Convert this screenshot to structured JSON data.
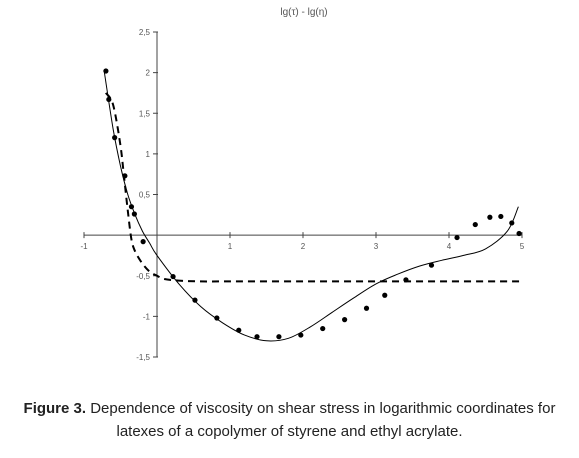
{
  "chart_data": {
    "type": "scatter",
    "title": "lg(τ) - lg(η)",
    "xlabel": "",
    "ylabel": "",
    "xlim": [
      -1,
      5
    ],
    "ylim": [
      -1.5,
      2.5
    ],
    "x_ticks": [
      "-1",
      "1",
      "2",
      "3",
      "4",
      "5"
    ],
    "y_ticks": [
      "2,5",
      "2",
      "1,5",
      "1",
      "0,5",
      "-0,5",
      "-1",
      "-1,5"
    ],
    "x_tick_values": [
      -1,
      1,
      2,
      3,
      4,
      5
    ],
    "y_tick_values": [
      2.5,
      2,
      1.5,
      1,
      0.5,
      -0.5,
      -1,
      -1.5
    ],
    "grid": false,
    "legend": "none",
    "series": [
      {
        "style": "markers",
        "color": "#000000",
        "x": [
          -0.7,
          -0.66,
          -0.58,
          -0.44,
          -0.35,
          -0.31,
          -0.19,
          0.22,
          0.52,
          0.82,
          1.12,
          1.37,
          1.67,
          1.97,
          2.27,
          2.57,
          2.87,
          3.12,
          3.41,
          3.76,
          4.11,
          4.36,
          4.56,
          4.71,
          4.86,
          4.96
        ],
        "y": [
          2.02,
          1.67,
          1.2,
          0.73,
          0.35,
          0.26,
          -0.08,
          -0.51,
          -0.8,
          -1.02,
          -1.17,
          -1.25,
          -1.25,
          -1.23,
          -1.15,
          -1.04,
          -0.9,
          -0.74,
          -0.55,
          -0.37,
          -0.03,
          0.13,
          0.22,
          0.23,
          0.15,
          0.02
        ]
      },
      {
        "style": "solid-line",
        "color": "#000000",
        "x": [
          -0.72,
          -0.6,
          -0.5,
          -0.4,
          -0.3,
          -0.2,
          -0.1,
          0.0,
          0.3,
          0.6,
          0.9,
          1.2,
          1.5,
          1.8,
          2.1,
          2.4,
          2.7,
          3.0,
          3.3,
          3.6,
          3.9,
          4.2,
          4.5,
          4.8,
          4.95
        ],
        "y": [
          2.0,
          1.3,
          0.85,
          0.5,
          0.25,
          0.05,
          -0.1,
          -0.25,
          -0.6,
          -0.88,
          -1.08,
          -1.23,
          -1.3,
          -1.27,
          -1.13,
          -0.95,
          -0.77,
          -0.6,
          -0.48,
          -0.38,
          -0.31,
          -0.25,
          -0.17,
          0.05,
          0.35
        ]
      },
      {
        "style": "dashed-line",
        "color": "#000000",
        "x": [
          -0.7,
          -0.6,
          -0.5,
          -0.45,
          -0.4,
          -0.35,
          -0.3,
          -0.2,
          -0.1,
          0.0,
          0.1,
          0.3,
          0.6,
          1.0,
          2.0,
          3.0,
          4.0,
          5.0
        ],
        "y": [
          1.75,
          1.6,
          1.1,
          0.7,
          0.3,
          -0.05,
          -0.2,
          -0.35,
          -0.45,
          -0.5,
          -0.54,
          -0.56,
          -0.57,
          -0.57,
          -0.57,
          -0.57,
          -0.57,
          -0.57
        ]
      }
    ]
  },
  "caption": {
    "lead": "Figure 3.",
    "text": " Dependence of viscosity on shear stress in logarithmic coordinates for latexes of a copolymer of styrene and ethyl acrylate."
  }
}
